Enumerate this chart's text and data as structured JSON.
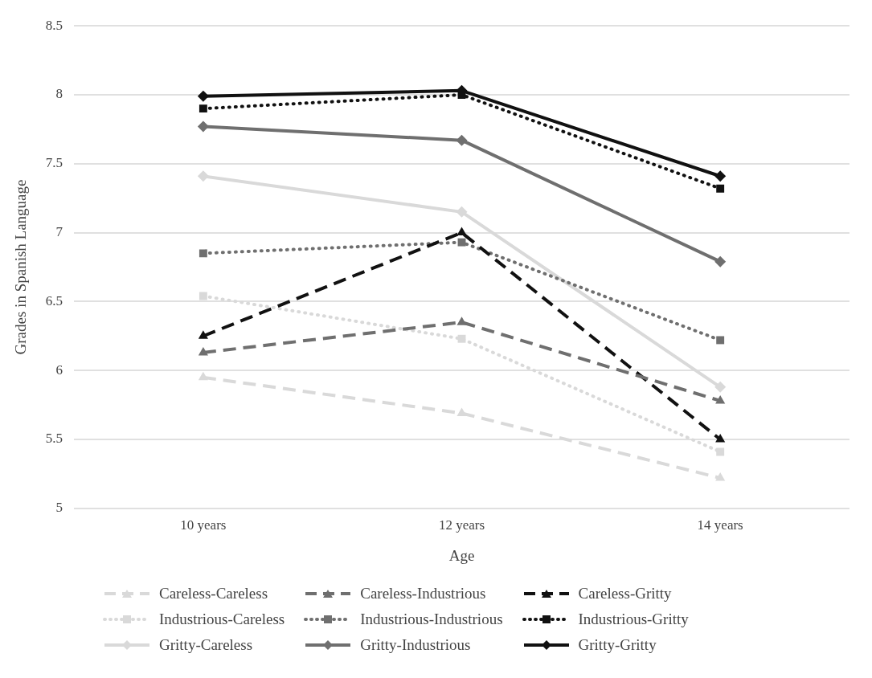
{
  "chart_data": {
    "type": "line",
    "xlabel": "Age",
    "ylabel": "Grades in Spanish Language",
    "categories": [
      "10 years",
      "12 years",
      "14 years"
    ],
    "ylim": [
      5,
      8.5
    ],
    "yticks": [
      5,
      5.5,
      6,
      6.5,
      7,
      7.5,
      8,
      8.5
    ],
    "grid": "y",
    "legend": "bottom",
    "series": [
      {
        "name": "Careless-Careless",
        "color": "#d9d9d9",
        "marker": "triangle",
        "line_style": "dashed",
        "values": [
          5.95,
          5.69,
          5.22
        ]
      },
      {
        "name": "Careless-Industrious",
        "color": "#6f6f6f",
        "marker": "triangle",
        "line_style": "dashed",
        "values": [
          6.13,
          6.35,
          5.78
        ]
      },
      {
        "name": "Careless-Gritty",
        "color": "#111111",
        "marker": "triangle",
        "line_style": "dashed",
        "values": [
          6.25,
          7.0,
          5.5
        ]
      },
      {
        "name": "Industrious-Careless",
        "color": "#d9d9d9",
        "marker": "square",
        "line_style": "dotted",
        "values": [
          6.54,
          6.23,
          5.41
        ]
      },
      {
        "name": "Industrious-Industrious",
        "color": "#6f6f6f",
        "marker": "square",
        "line_style": "dotted",
        "values": [
          6.85,
          6.93,
          6.22
        ]
      },
      {
        "name": "Industrious-Gritty",
        "color": "#111111",
        "marker": "square",
        "line_style": "dotted",
        "values": [
          7.9,
          8.0,
          7.32
        ]
      },
      {
        "name": "Gritty-Careless",
        "color": "#d9d9d9",
        "marker": "diamond",
        "line_style": "solid",
        "values": [
          7.41,
          7.15,
          5.88
        ]
      },
      {
        "name": "Gritty-Industrious",
        "color": "#6f6f6f",
        "marker": "diamond",
        "line_style": "solid",
        "values": [
          7.77,
          7.67,
          6.79
        ]
      },
      {
        "name": "Gritty-Gritty",
        "color": "#111111",
        "marker": "diamond",
        "line_style": "solid",
        "values": [
          7.99,
          8.03,
          7.41
        ]
      }
    ]
  }
}
